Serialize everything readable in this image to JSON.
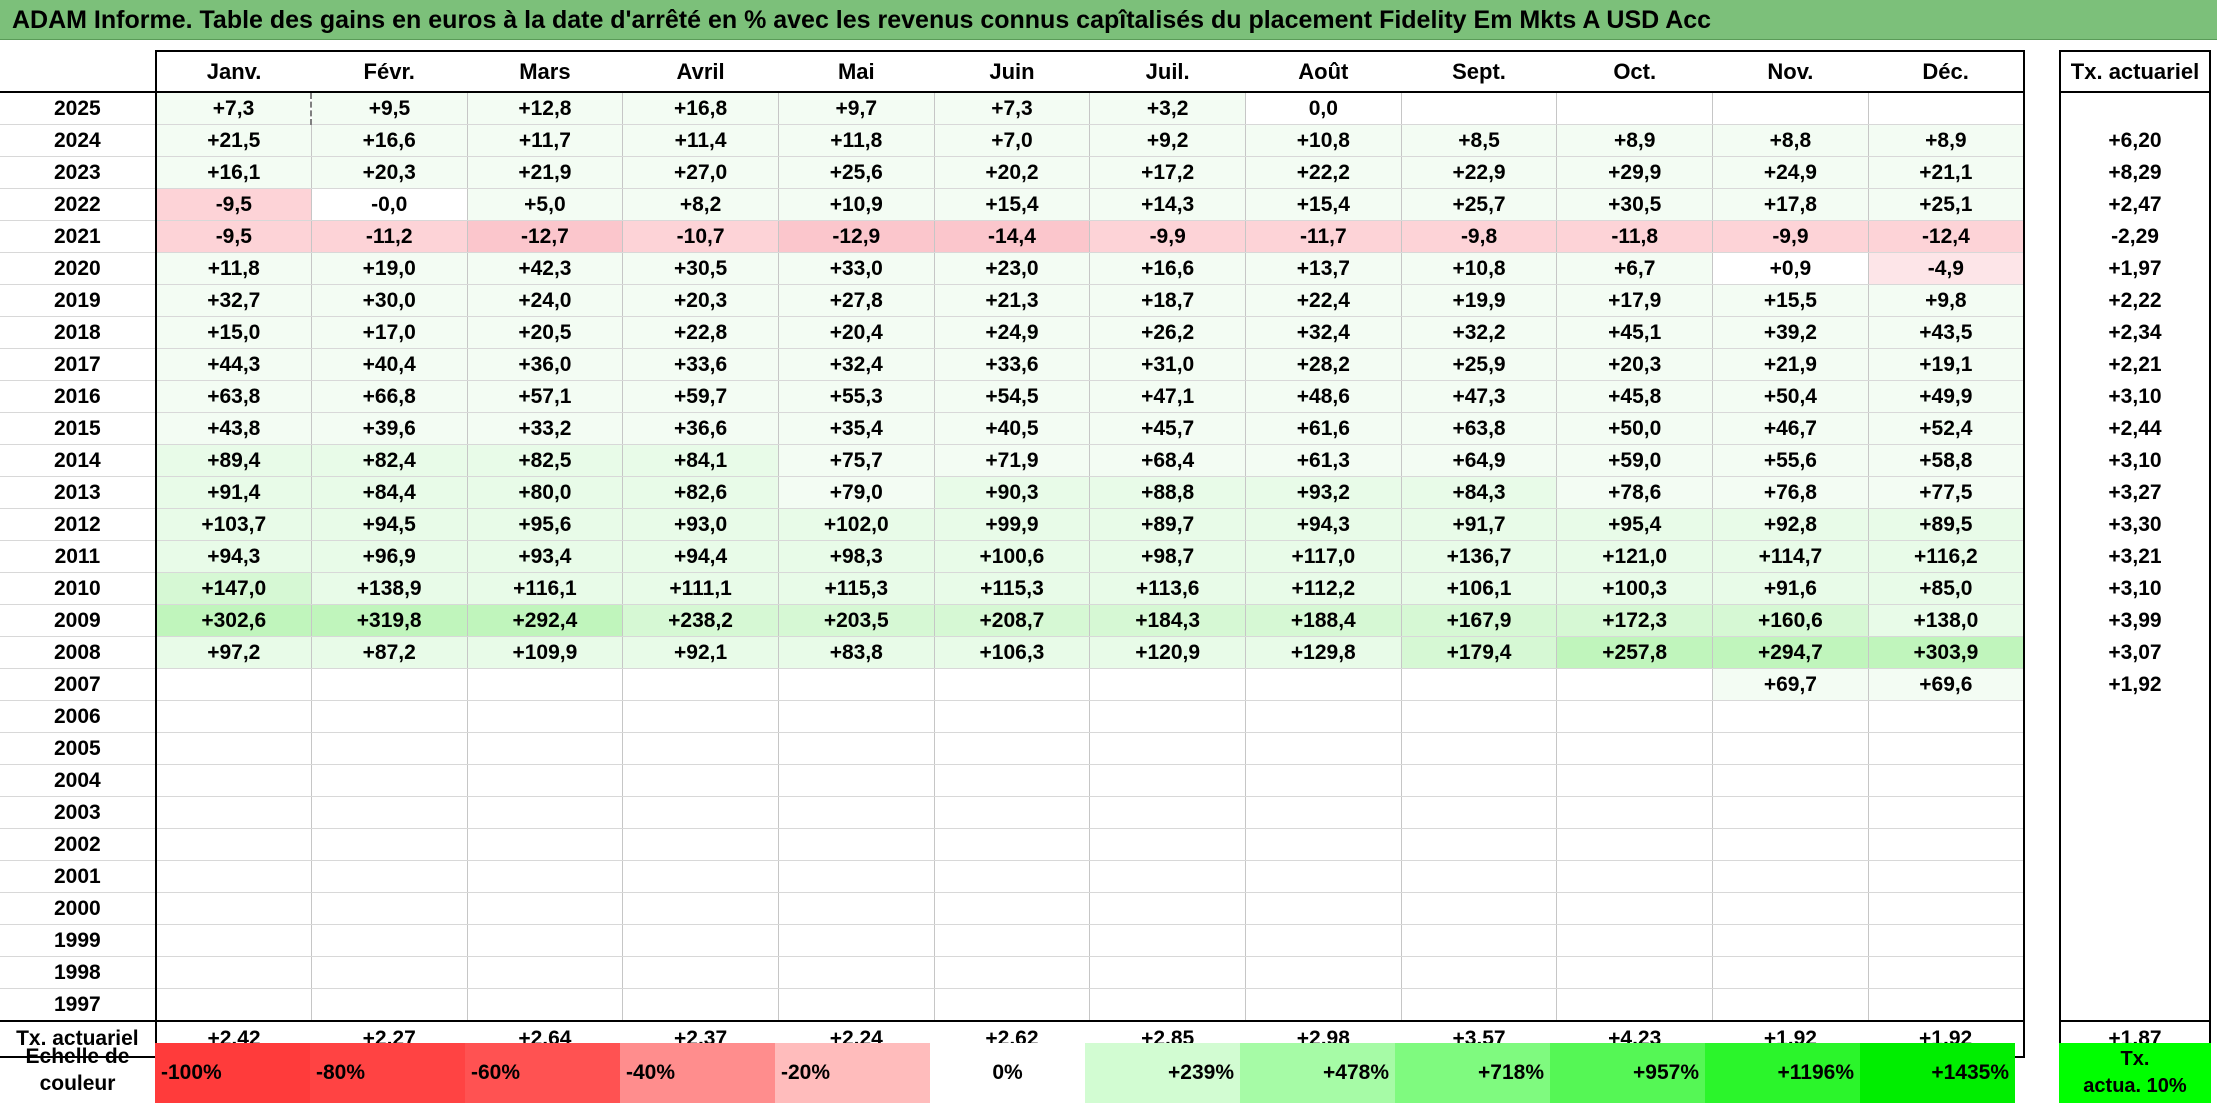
{
  "title": "ADAM Informe. Table des gains en euros à la date d'arrêté en % avec les revenus connus capîtalisés du placement Fidelity Em Mkts A USD Acc",
  "months": [
    "Janv.",
    "Févr.",
    "Mars",
    "Avril",
    "Mai",
    "Juin",
    "Juil.",
    "Août",
    "Sept.",
    "Oct.",
    "Nov.",
    "Déc."
  ],
  "rate_header": "Tx. actuariel",
  "rows": [
    {
      "year": "2025",
      "values": [
        "+7,3",
        "+9,5",
        "+12,8",
        "+16,8",
        "+9,7",
        "+7,3",
        "+3,2",
        "0,0",
        "",
        "",
        "",
        ""
      ],
      "rate": ""
    },
    {
      "year": "2024",
      "values": [
        "+21,5",
        "+16,6",
        "+11,7",
        "+11,4",
        "+11,8",
        "+7,0",
        "+9,2",
        "+10,8",
        "+8,5",
        "+8,9",
        "+8,8",
        "+8,9"
      ],
      "rate": "+6,20"
    },
    {
      "year": "2023",
      "values": [
        "+16,1",
        "+20,3",
        "+21,9",
        "+27,0",
        "+25,6",
        "+20,2",
        "+17,2",
        "+22,2",
        "+22,9",
        "+29,9",
        "+24,9",
        "+21,1"
      ],
      "rate": "+8,29"
    },
    {
      "year": "2022",
      "values": [
        "-9,5",
        "-0,0",
        "+5,0",
        "+8,2",
        "+10,9",
        "+15,4",
        "+14,3",
        "+15,4",
        "+25,7",
        "+30,5",
        "+17,8",
        "+25,1"
      ],
      "rate": "+2,47"
    },
    {
      "year": "2021",
      "values": [
        "-9,5",
        "-11,2",
        "-12,7",
        "-10,7",
        "-12,9",
        "-14,4",
        "-9,9",
        "-11,7",
        "-9,8",
        "-11,8",
        "-9,9",
        "-12,4"
      ],
      "rate": "-2,29"
    },
    {
      "year": "2020",
      "values": [
        "+11,8",
        "+19,0",
        "+42,3",
        "+30,5",
        "+33,0",
        "+23,0",
        "+16,6",
        "+13,7",
        "+10,8",
        "+6,7",
        "+0,9",
        "-4,9"
      ],
      "rate": "+1,97"
    },
    {
      "year": "2019",
      "values": [
        "+32,7",
        "+30,0",
        "+24,0",
        "+20,3",
        "+27,8",
        "+21,3",
        "+18,7",
        "+22,4",
        "+19,9",
        "+17,9",
        "+15,5",
        "+9,8"
      ],
      "rate": "+2,22"
    },
    {
      "year": "2018",
      "values": [
        "+15,0",
        "+17,0",
        "+20,5",
        "+22,8",
        "+20,4",
        "+24,9",
        "+26,2",
        "+32,4",
        "+32,2",
        "+45,1",
        "+39,2",
        "+43,5"
      ],
      "rate": "+2,34"
    },
    {
      "year": "2017",
      "values": [
        "+44,3",
        "+40,4",
        "+36,0",
        "+33,6",
        "+32,4",
        "+33,6",
        "+31,0",
        "+28,2",
        "+25,9",
        "+20,3",
        "+21,9",
        "+19,1"
      ],
      "rate": "+2,21"
    },
    {
      "year": "2016",
      "values": [
        "+63,8",
        "+66,8",
        "+57,1",
        "+59,7",
        "+55,3",
        "+54,5",
        "+47,1",
        "+48,6",
        "+47,3",
        "+45,8",
        "+50,4",
        "+49,9"
      ],
      "rate": "+3,10"
    },
    {
      "year": "2015",
      "values": [
        "+43,8",
        "+39,6",
        "+33,2",
        "+36,6",
        "+35,4",
        "+40,5",
        "+45,7",
        "+61,6",
        "+63,8",
        "+50,0",
        "+46,7",
        "+52,4"
      ],
      "rate": "+2,44"
    },
    {
      "year": "2014",
      "values": [
        "+89,4",
        "+82,4",
        "+82,5",
        "+84,1",
        "+75,7",
        "+71,9",
        "+68,4",
        "+61,3",
        "+64,9",
        "+59,0",
        "+55,6",
        "+58,8"
      ],
      "rate": "+3,10"
    },
    {
      "year": "2013",
      "values": [
        "+91,4",
        "+84,4",
        "+80,0",
        "+82,6",
        "+79,0",
        "+90,3",
        "+88,8",
        "+93,2",
        "+84,3",
        "+78,6",
        "+76,8",
        "+77,5"
      ],
      "rate": "+3,27"
    },
    {
      "year": "2012",
      "values": [
        "+103,7",
        "+94,5",
        "+95,6",
        "+93,0",
        "+102,0",
        "+99,9",
        "+89,7",
        "+94,3",
        "+91,7",
        "+95,4",
        "+92,8",
        "+89,5"
      ],
      "rate": "+3,30"
    },
    {
      "year": "2011",
      "values": [
        "+94,3",
        "+96,9",
        "+93,4",
        "+94,4",
        "+98,3",
        "+100,6",
        "+98,7",
        "+117,0",
        "+136,7",
        "+121,0",
        "+114,7",
        "+116,2"
      ],
      "rate": "+3,21"
    },
    {
      "year": "2010",
      "values": [
        "+147,0",
        "+138,9",
        "+116,1",
        "+111,1",
        "+115,3",
        "+115,3",
        "+113,6",
        "+112,2",
        "+106,1",
        "+100,3",
        "+91,6",
        "+85,0"
      ],
      "rate": "+3,10"
    },
    {
      "year": "2009",
      "values": [
        "+302,6",
        "+319,8",
        "+292,4",
        "+238,2",
        "+203,5",
        "+208,7",
        "+184,3",
        "+188,4",
        "+167,9",
        "+172,3",
        "+160,6",
        "+138,0"
      ],
      "rate": "+3,99"
    },
    {
      "year": "2008",
      "values": [
        "+97,2",
        "+87,2",
        "+109,9",
        "+92,1",
        "+83,8",
        "+106,3",
        "+120,9",
        "+129,8",
        "+179,4",
        "+257,8",
        "+294,7",
        "+303,9"
      ],
      "rate": "+3,07"
    },
    {
      "year": "2007",
      "values": [
        "",
        "",
        "",
        "",
        "",
        "",
        "",
        "",
        "",
        "",
        "+69,7",
        "+69,6"
      ],
      "rate": "+1,92"
    },
    {
      "year": "2006",
      "values": [
        "",
        "",
        "",
        "",
        "",
        "",
        "",
        "",
        "",
        "",
        "",
        ""
      ],
      "rate": ""
    },
    {
      "year": "2005",
      "values": [
        "",
        "",
        "",
        "",
        "",
        "",
        "",
        "",
        "",
        "",
        "",
        ""
      ],
      "rate": ""
    },
    {
      "year": "2004",
      "values": [
        "",
        "",
        "",
        "",
        "",
        "",
        "",
        "",
        "",
        "",
        "",
        ""
      ],
      "rate": ""
    },
    {
      "year": "2003",
      "values": [
        "",
        "",
        "",
        "",
        "",
        "",
        "",
        "",
        "",
        "",
        "",
        ""
      ],
      "rate": ""
    },
    {
      "year": "2002",
      "values": [
        "",
        "",
        "",
        "",
        "",
        "",
        "",
        "",
        "",
        "",
        "",
        ""
      ],
      "rate": ""
    },
    {
      "year": "2001",
      "values": [
        "",
        "",
        "",
        "",
        "",
        "",
        "",
        "",
        "",
        "",
        "",
        ""
      ],
      "rate": ""
    },
    {
      "year": "2000",
      "values": [
        "",
        "",
        "",
        "",
        "",
        "",
        "",
        "",
        "",
        "",
        "",
        ""
      ],
      "rate": ""
    },
    {
      "year": "1999",
      "values": [
        "",
        "",
        "",
        "",
        "",
        "",
        "",
        "",
        "",
        "",
        "",
        ""
      ],
      "rate": ""
    },
    {
      "year": "1998",
      "values": [
        "",
        "",
        "",
        "",
        "",
        "",
        "",
        "",
        "",
        "",
        "",
        ""
      ],
      "rate": ""
    },
    {
      "year": "1997",
      "values": [
        "",
        "",
        "",
        "",
        "",
        "",
        "",
        "",
        "",
        "",
        "",
        ""
      ],
      "rate": ""
    }
  ],
  "footer": {
    "label": "Tx. actuariel",
    "values": [
      "+2,42",
      "+2,27",
      "+2,64",
      "+2,37",
      "+2,24",
      "+2,62",
      "+2,85",
      "+2,98",
      "+3,57",
      "+4,23",
      "+1,92",
      "+1,92"
    ],
    "rate": "+1,87"
  },
  "scale": {
    "label_line1": "Echelle de",
    "label_line2": "couleur",
    "steps": [
      {
        "label": "-100%",
        "color": "#ff3b3b",
        "kind": "neg"
      },
      {
        "label": "-80%",
        "color": "#ff4343",
        "kind": "neg"
      },
      {
        "label": "-60%",
        "color": "#ff5252",
        "kind": "neg"
      },
      {
        "label": "-40%",
        "color": "#ff8d8d",
        "kind": "neg"
      },
      {
        "label": "-20%",
        "color": "#ffbcbc",
        "kind": "neg"
      },
      {
        "label": "0%",
        "color": "#ffffff",
        "kind": "zero"
      },
      {
        "label": "+239%",
        "color": "#d2fcd2",
        "kind": "pos"
      },
      {
        "label": "+478%",
        "color": "#a6fba6",
        "kind": "pos"
      },
      {
        "label": "+718%",
        "color": "#7ffa7f",
        "kind": "pos"
      },
      {
        "label": "+957%",
        "color": "#55f755",
        "kind": "pos"
      },
      {
        "label": "+1196%",
        "color": "#2bf52b",
        "kind": "pos"
      },
      {
        "label": "+1435%",
        "color": "#00ee00",
        "kind": "pos"
      }
    ],
    "rate_line1": "Tx.",
    "rate_line2": "actua. 10%",
    "rate_color": "#00ff00"
  }
}
